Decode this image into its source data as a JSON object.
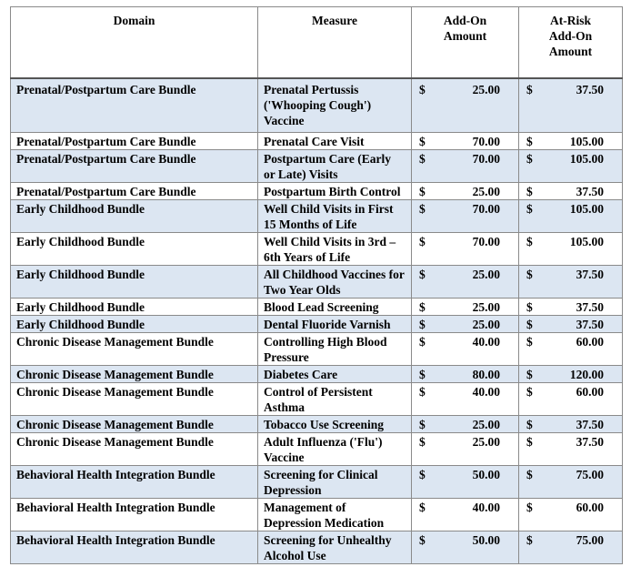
{
  "table": {
    "header": [
      [
        "Domain"
      ],
      [
        "Measure"
      ],
      [
        "Add-On",
        "Amount"
      ],
      [
        "At-Risk",
        "Add-On",
        "Amount"
      ]
    ],
    "rows": [
      [
        "Prenatal/Postpartum Care Bundle",
        "Prenatal Pertussis ('Whooping Cough') Vaccine",
        "$",
        "25.00",
        "$",
        "37.50"
      ],
      [
        "Prenatal/Postpartum Care Bundle",
        "Prenatal Care Visit",
        "$",
        "70.00",
        "$",
        "105.00"
      ],
      [
        "Prenatal/Postpartum Care Bundle",
        "Postpartum Care (Early or Late) Visits",
        "$",
        "70.00",
        "$",
        "105.00"
      ],
      [
        "Prenatal/Postpartum Care Bundle",
        "Postpartum Birth Control",
        "$",
        "25.00",
        "$",
        "37.50"
      ],
      [
        "Early Childhood Bundle",
        "Well Child Visits in First 15 Months of Life",
        "$",
        "70.00",
        "$",
        "105.00"
      ],
      [
        "Early Childhood Bundle",
        "Well Child Visits in 3rd – 6th Years of Life",
        "$",
        "70.00",
        "$",
        "105.00"
      ],
      [
        "Early Childhood Bundle",
        "All Childhood Vaccines for Two Year Olds",
        "$",
        "25.00",
        "$",
        "37.50"
      ],
      [
        "Early Childhood Bundle",
        "Blood Lead Screening",
        "$",
        "25.00",
        "$",
        "37.50"
      ],
      [
        "Early Childhood Bundle",
        "Dental Fluoride Varnish",
        "$",
        "25.00",
        "$",
        "37.50"
      ],
      [
        "Chronic Disease Management Bundle",
        "Controlling High Blood Pressure",
        "$",
        "40.00",
        "$",
        "60.00"
      ],
      [
        "Chronic Disease Management Bundle",
        "Diabetes Care",
        "$",
        "80.00",
        "$",
        "120.00"
      ],
      [
        "Chronic Disease Management Bundle",
        "Control of Persistent Asthma",
        "$",
        "40.00",
        "$",
        "60.00"
      ],
      [
        "Chronic Disease Management Bundle",
        "Tobacco Use Screening",
        "$",
        "25.00",
        "$",
        "37.50"
      ],
      [
        "Chronic Disease Management Bundle",
        "Adult Influenza ('Flu') Vaccine",
        "$",
        "25.00",
        "$",
        "37.50"
      ],
      [
        "Behavioral Health Integration Bundle",
        "Screening for Clinical Depression",
        "$",
        "50.00",
        "$",
        "75.00"
      ],
      [
        "Behavioral Health Integration Bundle",
        "Management of Depression Medication",
        "$",
        "40.00",
        "$",
        "60.00"
      ],
      [
        "Behavioral Health Integration Bundle",
        "Screening for Unhealthy Alcohol Use",
        "$",
        "50.00",
        "$",
        "75.00"
      ]
    ]
  }
}
